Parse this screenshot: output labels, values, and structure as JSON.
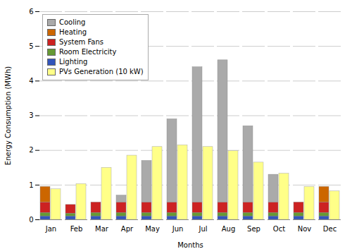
{
  "chart_data": {
    "type": "bar",
    "xlabel": "Months",
    "ylabel": "Energy Consumption (MWh)",
    "categories": [
      "Jan",
      "Feb",
      "Mar",
      "Apr",
      "May",
      "Jun",
      "Jul",
      "Aug",
      "Sep",
      "Oct",
      "Nov",
      "Dec"
    ],
    "series": [
      {
        "name": "Cooling",
        "color": "#aaaaaa",
        "stacked": true,
        "values": [
          0.0,
          0.0,
          0.0,
          0.2,
          1.2,
          2.4,
          3.9,
          4.1,
          2.2,
          0.8,
          0.0,
          0.0
        ]
      },
      {
        "name": "Heating",
        "color": "#cc6600",
        "stacked": true,
        "values": [
          0.45,
          0.0,
          0.0,
          0.0,
          0.0,
          0.0,
          0.0,
          0.0,
          0.0,
          0.0,
          0.0,
          0.45
        ]
      },
      {
        "name": "System Fans",
        "color": "#cc2222",
        "stacked": true,
        "values": [
          0.3,
          0.25,
          0.3,
          0.3,
          0.3,
          0.3,
          0.3,
          0.3,
          0.3,
          0.3,
          0.3,
          0.3
        ]
      },
      {
        "name": "Room Electricity",
        "color": "#669933",
        "stacked": true,
        "values": [
          0.1,
          0.08,
          0.1,
          0.1,
          0.1,
          0.1,
          0.1,
          0.1,
          0.1,
          0.1,
          0.1,
          0.1
        ]
      },
      {
        "name": "Lighting",
        "color": "#3355bb",
        "stacked": true,
        "values": [
          0.1,
          0.1,
          0.1,
          0.1,
          0.1,
          0.1,
          0.1,
          0.1,
          0.1,
          0.1,
          0.1,
          0.1
        ]
      },
      {
        "name": "PVs Generation (10 kW)",
        "color": "#ffff88",
        "stacked": false,
        "values": [
          0.88,
          1.03,
          1.5,
          1.85,
          2.1,
          2.15,
          2.1,
          1.98,
          1.65,
          1.33,
          0.95,
          0.82
        ]
      }
    ],
    "ylim": [
      0,
      6
    ],
    "yticks": [
      0,
      1,
      2,
      3,
      4,
      5,
      6
    ],
    "grid": true,
    "legend": "upper left"
  }
}
